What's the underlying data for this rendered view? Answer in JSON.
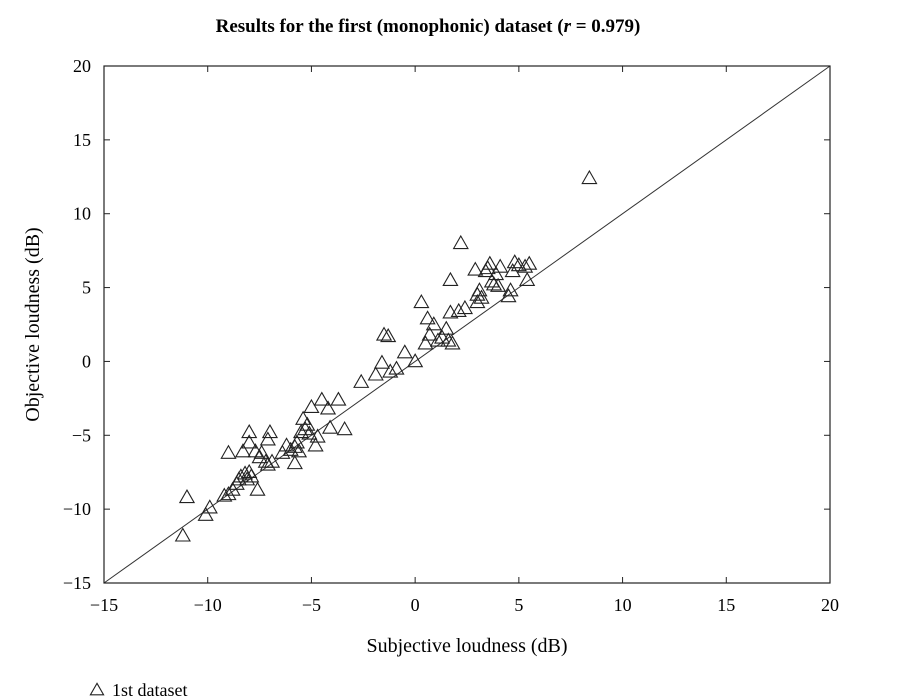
{
  "chart_data": {
    "type": "scatter",
    "title": "Results for the first (monophonic) dataset (r = 0.979)",
    "title_prefix": "Results for the first (monophonic) dataset (",
    "title_var": "r",
    "title_suffix": " = 0.979)",
    "xlabel": "Subjective loudness (dB)",
    "ylabel": "Objective loudness (dB)",
    "xlim": [
      -15,
      20
    ],
    "ylim": [
      -15,
      20
    ],
    "xticks": [
      -15,
      -10,
      -5,
      0,
      5,
      10,
      15,
      20
    ],
    "yticks": [
      -15,
      -10,
      -5,
      0,
      5,
      10,
      15,
      20
    ],
    "xtick_labels": [
      "−15",
      "−10",
      "−5",
      "0",
      "5",
      "10",
      "15",
      "20"
    ],
    "ytick_labels": [
      "−15",
      "−10",
      "−5",
      "0",
      "5",
      "10",
      "15",
      "20"
    ],
    "grid": false,
    "reference_line": {
      "from": [
        -15,
        -15
      ],
      "to": [
        20,
        20
      ]
    },
    "marker": "triangle-open",
    "legend_position": "below-left",
    "series": [
      {
        "name": "1st dataset",
        "marker_color": "#222222",
        "points": [
          [
            -11.2,
            -11.8
          ],
          [
            -11.0,
            -9.2
          ],
          [
            -10.1,
            -10.4
          ],
          [
            -9.9,
            -9.9
          ],
          [
            -9.2,
            -9.1
          ],
          [
            -9.0,
            -9.0
          ],
          [
            -9.0,
            -6.2
          ],
          [
            -8.8,
            -8.7
          ],
          [
            -8.6,
            -8.3
          ],
          [
            -8.5,
            -8.0
          ],
          [
            -8.4,
            -7.8
          ],
          [
            -8.3,
            -6.1
          ],
          [
            -8.2,
            -7.6
          ],
          [
            -8.1,
            -8.0
          ],
          [
            -8.0,
            -7.5
          ],
          [
            -8.0,
            -5.5
          ],
          [
            -8.0,
            -4.8
          ],
          [
            -7.9,
            -7.8
          ],
          [
            -7.7,
            -6.1
          ],
          [
            -7.6,
            -8.7
          ],
          [
            -7.5,
            -6.5
          ],
          [
            -7.4,
            -6.2
          ],
          [
            -7.2,
            -6.8
          ],
          [
            -7.1,
            -7.0
          ],
          [
            -7.1,
            -5.3
          ],
          [
            -7.0,
            -4.8
          ],
          [
            -6.9,
            -6.8
          ],
          [
            -6.4,
            -6.2
          ],
          [
            -6.2,
            -5.7
          ],
          [
            -6.0,
            -6.0
          ],
          [
            -5.8,
            -6.9
          ],
          [
            -5.8,
            -5.8
          ],
          [
            -5.7,
            -5.5
          ],
          [
            -5.6,
            -6.1
          ],
          [
            -5.5,
            -4.8
          ],
          [
            -5.4,
            -3.9
          ],
          [
            -5.3,
            -4.6
          ],
          [
            -5.2,
            -4.3
          ],
          [
            -5.1,
            -4.9
          ],
          [
            -5.0,
            -3.1
          ],
          [
            -4.8,
            -5.7
          ],
          [
            -4.7,
            -5.1
          ],
          [
            -4.5,
            -2.6
          ],
          [
            -4.2,
            -3.2
          ],
          [
            -4.1,
            -4.5
          ],
          [
            -3.7,
            -2.6
          ],
          [
            -3.4,
            -4.6
          ],
          [
            -2.6,
            -1.4
          ],
          [
            -1.9,
            -0.9
          ],
          [
            -1.6,
            -0.1
          ],
          [
            -1.5,
            1.8
          ],
          [
            -1.3,
            1.7
          ],
          [
            -1.2,
            -0.7
          ],
          [
            -0.9,
            -0.5
          ],
          [
            -0.5,
            0.6
          ],
          [
            0.0,
            0.0
          ],
          [
            0.3,
            4.0
          ],
          [
            0.5,
            1.2
          ],
          [
            0.6,
            2.9
          ],
          [
            0.7,
            1.8
          ],
          [
            0.9,
            2.5
          ],
          [
            1.1,
            1.4
          ],
          [
            1.3,
            1.6
          ],
          [
            1.5,
            2.2
          ],
          [
            1.6,
            1.4
          ],
          [
            1.7,
            3.3
          ],
          [
            1.7,
            5.5
          ],
          [
            1.8,
            1.2
          ],
          [
            2.1,
            3.4
          ],
          [
            2.2,
            8.0
          ],
          [
            2.4,
            3.6
          ],
          [
            2.9,
            6.2
          ],
          [
            3.0,
            4.0
          ],
          [
            3.0,
            4.5
          ],
          [
            3.1,
            4.8
          ],
          [
            3.2,
            4.3
          ],
          [
            3.4,
            6.1
          ],
          [
            3.5,
            6.3
          ],
          [
            3.6,
            6.6
          ],
          [
            3.7,
            5.4
          ],
          [
            3.8,
            5.2
          ],
          [
            3.9,
            5.9
          ],
          [
            4.0,
            5.1
          ],
          [
            4.1,
            6.4
          ],
          [
            4.5,
            4.4
          ],
          [
            4.6,
            4.8
          ],
          [
            4.7,
            6.1
          ],
          [
            4.8,
            6.7
          ],
          [
            5.0,
            6.5
          ],
          [
            5.3,
            6.4
          ],
          [
            5.4,
            5.5
          ],
          [
            5.5,
            6.6
          ],
          [
            8.4,
            12.4
          ]
        ]
      }
    ]
  }
}
